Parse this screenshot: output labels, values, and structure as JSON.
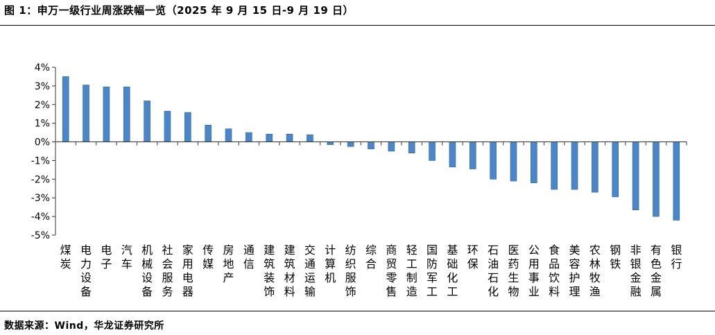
{
  "title": "图 1：申万一级行业周涨跌幅一览（2025 年 9 月 15 日-9 月 19 日）",
  "source": "数据来源：Wind，华龙证券研究所",
  "colors": {
    "bar": "#4a86c8",
    "bar_edge": "#2f64a0",
    "axis": "#333333"
  },
  "chart_data": {
    "type": "bar",
    "title": "图 1：申万一级行业周涨跌幅一览（2025 年 9 月 15 日-9 月 19 日）",
    "xlabel": "",
    "ylabel": "",
    "ylim": [
      -5,
      4
    ],
    "yticks": [
      "4%",
      "3%",
      "2%",
      "1%",
      "0%",
      "-1%",
      "-2%",
      "-3%",
      "-4%",
      "-5%"
    ],
    "grid": false,
    "categories": [
      "煤炭",
      "电力设备",
      "电子",
      "汽车",
      "机械设备",
      "社会服务",
      "家用电器",
      "传媒",
      "房地产",
      "通信",
      "建筑装饰",
      "建筑材料",
      "交通运输",
      "计算机",
      "纺织服饰",
      "综合",
      "商贸零售",
      "轻工制造",
      "国防军工",
      "基础化工",
      "环保",
      "石油石化",
      "医药生物",
      "公用事业",
      "食品饮料",
      "美容护理",
      "农林牧渔",
      "钢铁",
      "非银金融",
      "有色金属",
      "银行"
    ],
    "values": [
      3.5,
      3.05,
      2.95,
      2.95,
      2.2,
      1.65,
      1.58,
      0.9,
      0.7,
      0.5,
      0.42,
      0.42,
      0.38,
      -0.15,
      -0.25,
      -0.38,
      -0.5,
      -0.6,
      -1.0,
      -1.35,
      -1.45,
      -2.0,
      -2.1,
      -2.2,
      -2.55,
      -2.55,
      -2.7,
      -2.95,
      -3.65,
      -4.0,
      -4.2
    ]
  }
}
